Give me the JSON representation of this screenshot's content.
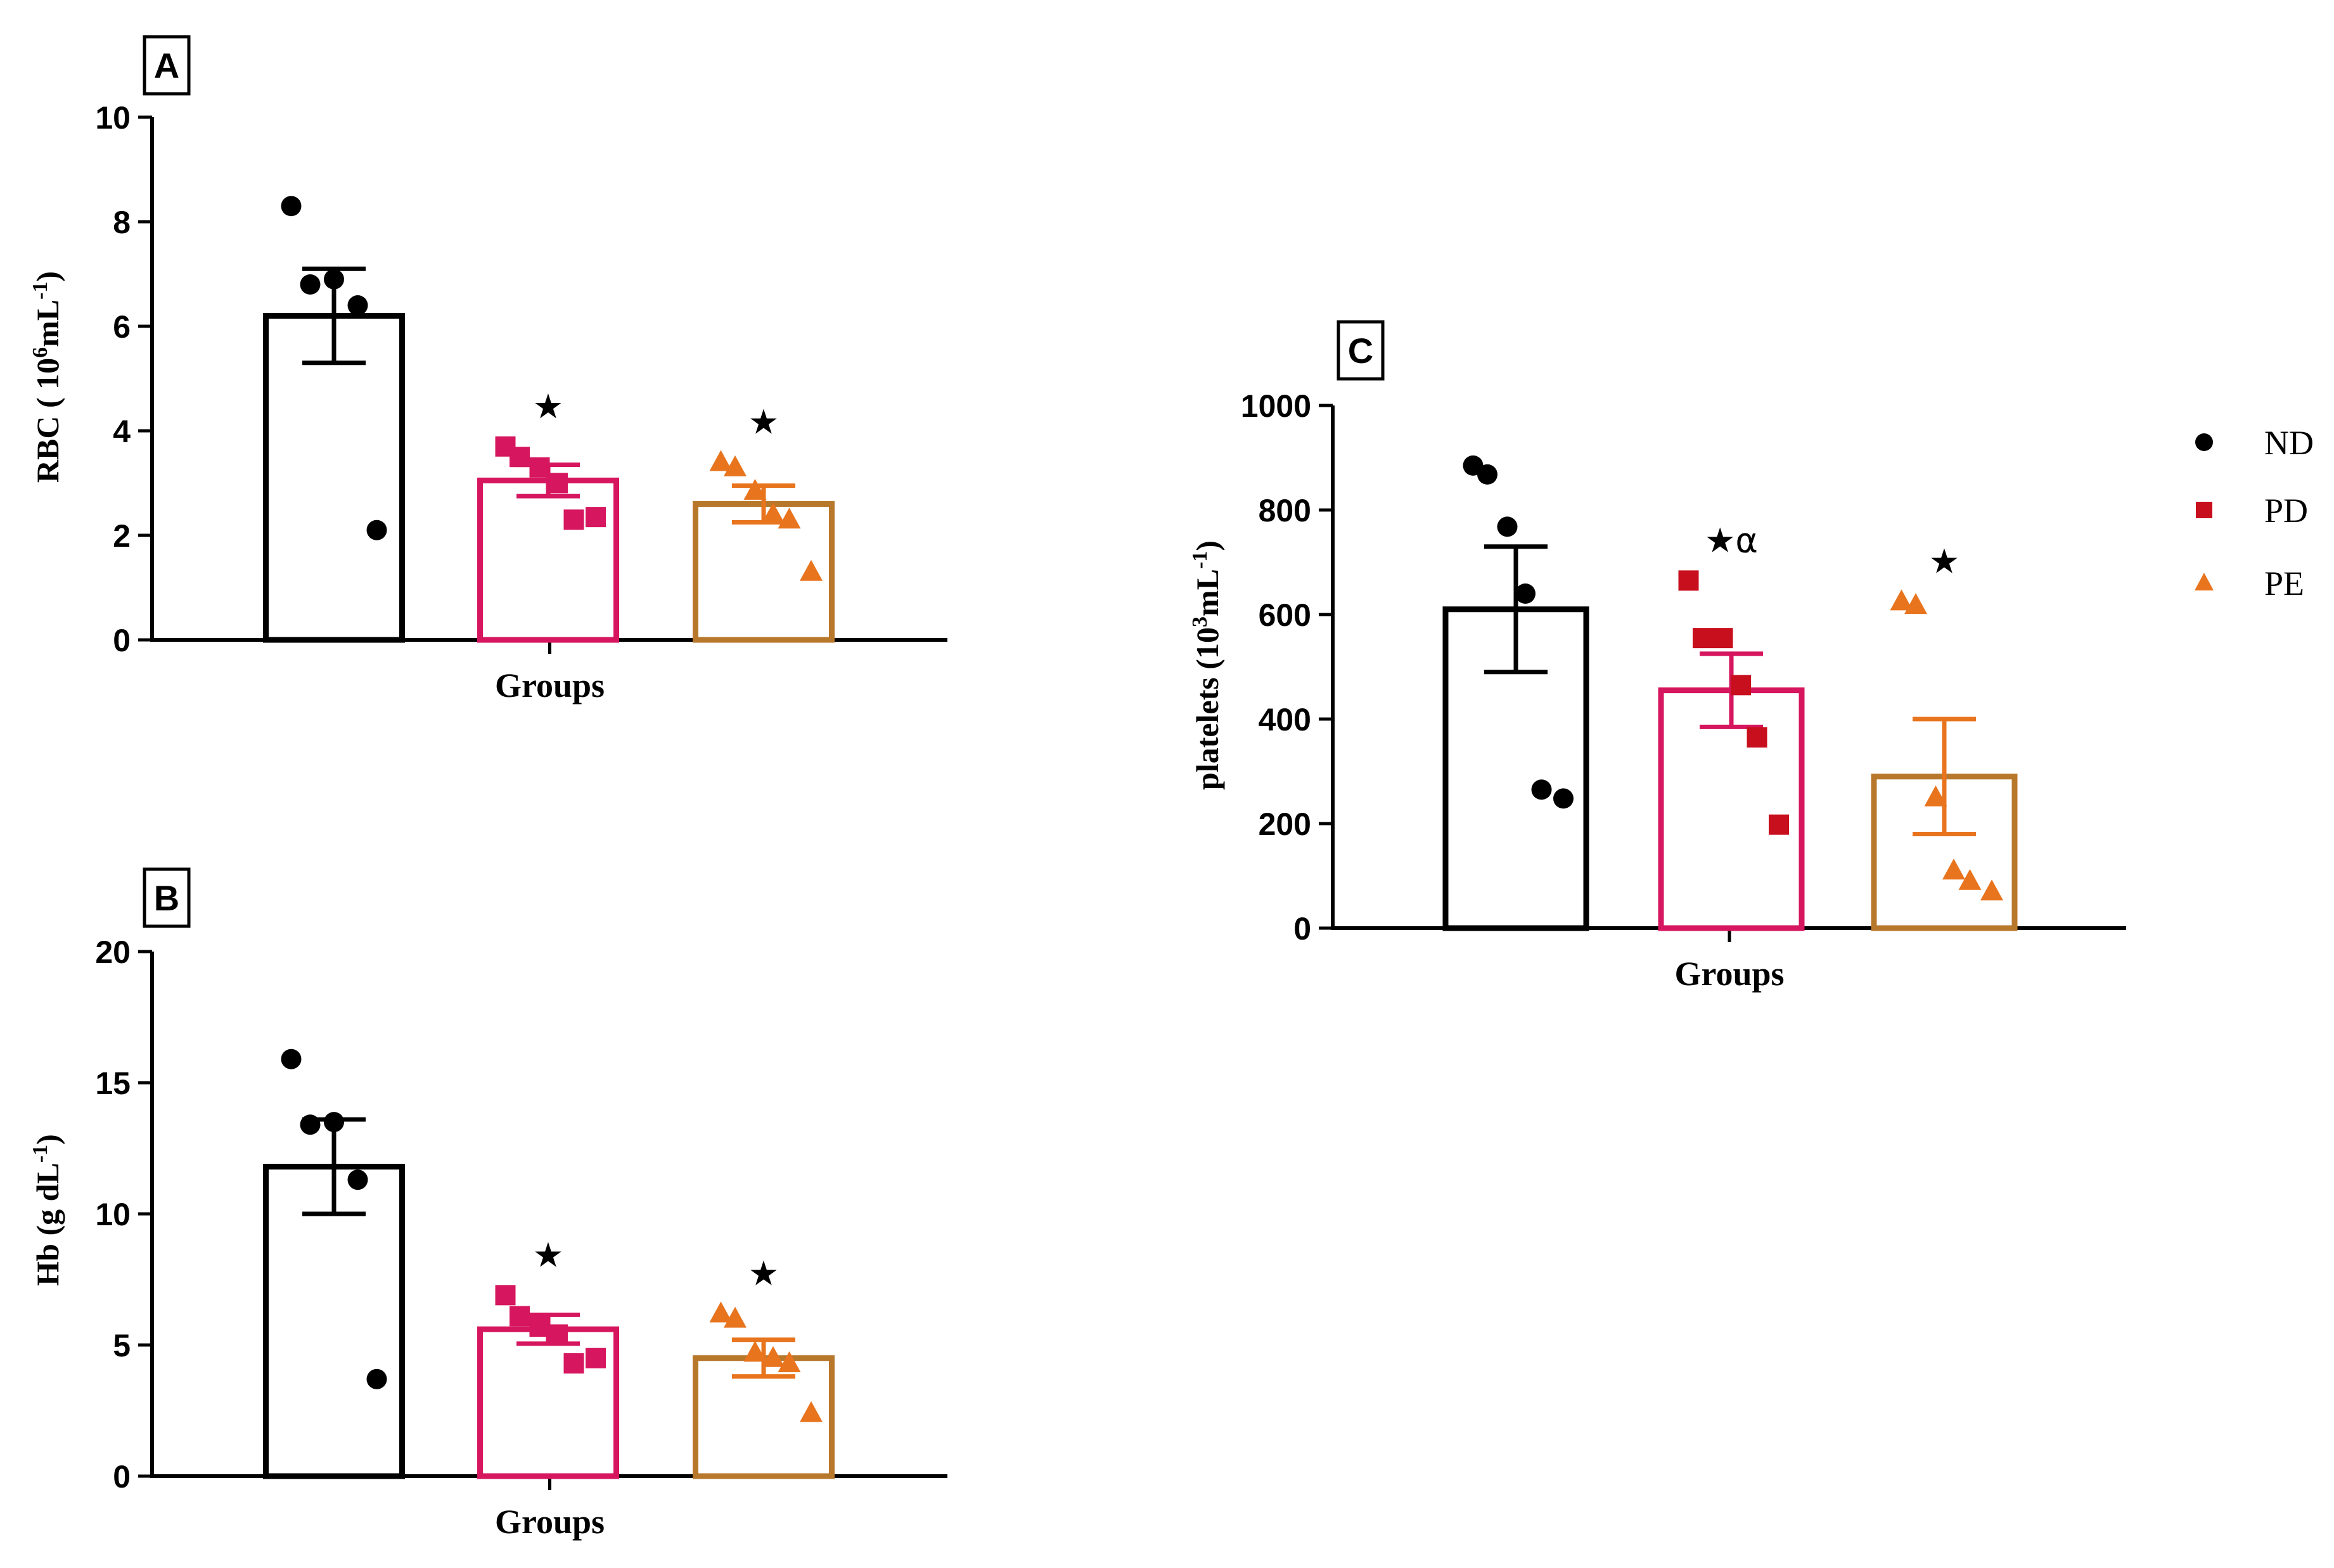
{
  "colors": {
    "axis": "#000000",
    "ND": "#000000",
    "PD_bar": "#d6165e",
    "PD_marker_A": "#d6165e",
    "PD_marker_C": "#c80f1e",
    "PE_bar": "#b8782c",
    "PE_marker": "#e8741e",
    "PE_err": "#e8741e"
  },
  "legend": {
    "items": [
      {
        "label": "ND",
        "marker": "circle",
        "color": "#000000"
      },
      {
        "label": "PD",
        "marker": "square",
        "color": "#c80f1e"
      },
      {
        "label": "PE",
        "marker": "triangle",
        "color": "#e8741e"
      }
    ]
  },
  "chart_data": [
    {
      "panel": "A",
      "type": "bar",
      "xlabel": "Groups",
      "ylabel_main": "RBC ( 10",
      "ylabel_sup1": "6",
      "ylabel_mid": "mL",
      "ylabel_sup2": "-1",
      "ylabel_end": ")",
      "ylim": [
        0,
        10
      ],
      "yticks": [
        "0",
        "2",
        "4",
        "6",
        "8",
        "10"
      ],
      "categories": [
        "ND",
        "PD",
        "PE"
      ],
      "values": [
        6.2,
        3.05,
        2.6
      ],
      "errors": [
        0.9,
        0.3,
        0.35
      ],
      "points": [
        [
          8.3,
          6.8,
          6.9,
          6.4,
          2.1
        ],
        [
          3.7,
          3.5,
          3.3,
          3.0,
          2.3,
          2.35
        ],
        [
          3.4,
          3.3,
          2.85,
          2.4,
          2.3,
          1.3
        ]
      ],
      "significance": [
        "",
        "★",
        "★"
      ]
    },
    {
      "panel": "B",
      "type": "bar",
      "xlabel": "Groups",
      "ylabel_main": "Hb (g dL",
      "ylabel_sup2": "-1",
      "ylabel_end": ")",
      "ylim": [
        0,
        20
      ],
      "yticks": [
        "0",
        "5",
        "10",
        "15",
        "20"
      ],
      "categories": [
        "ND",
        "PD",
        "PE"
      ],
      "values": [
        11.8,
        5.6,
        4.5
      ],
      "errors": [
        1.8,
        0.55,
        0.7
      ],
      "points": [
        [
          15.9,
          13.4,
          13.5,
          11.3,
          3.7
        ],
        [
          6.9,
          6.1,
          5.7,
          5.4,
          4.3,
          4.5
        ],
        [
          6.2,
          6.0,
          4.7,
          4.5,
          4.3,
          2.4
        ]
      ],
      "significance": [
        "",
        "★",
        "★"
      ]
    },
    {
      "panel": "C",
      "type": "bar",
      "xlabel": "Groups",
      "ylabel_main": "platelets (10",
      "ylabel_sup1": "3",
      "ylabel_mid": "mL",
      "ylabel_sup2": "-1",
      "ylabel_end": ")",
      "ylim": [
        0,
        1000
      ],
      "yticks": [
        "0",
        "200",
        "400",
        "600",
        "800",
        "1000"
      ],
      "categories": [
        "ND",
        "PD",
        "PE"
      ],
      "values": [
        610,
        455,
        290
      ],
      "errors": [
        120,
        70,
        110
      ],
      "points": [
        [
          885,
          868,
          768,
          640,
          265,
          248
        ],
        [
          665,
          555,
          555,
          465,
          365,
          198
        ],
        [
          625,
          618,
          250,
          110,
          90,
          70
        ]
      ],
      "significance": [
        "",
        "★α",
        "★"
      ]
    }
  ]
}
